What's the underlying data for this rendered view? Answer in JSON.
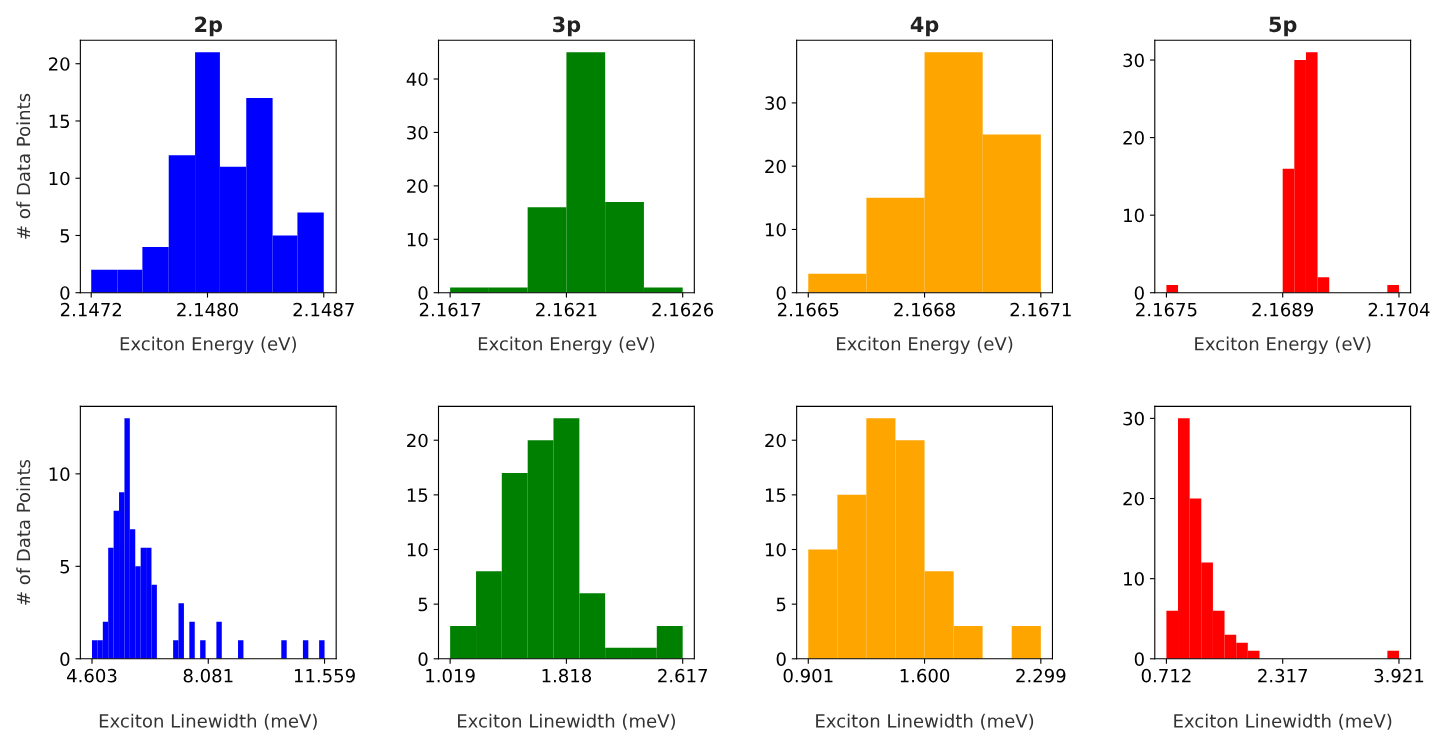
{
  "chart_data": [
    {
      "type": "histogram",
      "title": "2p",
      "xlabel": "Exciton Energy (eV)",
      "ylabel": "# of Data Points",
      "color": "#0000ff",
      "bins": [
        2.1472,
        2.14737,
        2.14753,
        2.1477,
        2.14787,
        2.14803,
        2.1482,
        2.14837,
        2.14853,
        2.1487
      ],
      "values": [
        2,
        2,
        4,
        12,
        21,
        11,
        17,
        5,
        7
      ],
      "xlim": [
        2.14713,
        2.14878
      ],
      "xticks": [
        {
          "value": 2.1472,
          "label": "2.1472"
        },
        {
          "value": 2.14795,
          "label": "2.1480"
        },
        {
          "value": 2.1487,
          "label": "2.1487"
        }
      ],
      "ylim": [
        0,
        22.05
      ],
      "yticks": [
        0,
        5,
        10,
        15,
        20
      ]
    },
    {
      "type": "histogram",
      "title": "3p",
      "xlabel": "Exciton Energy (eV)",
      "color": "#008000",
      "bins": [
        2.1617,
        2.16185,
        2.162,
        2.16215,
        2.1623,
        2.16245,
        2.1626
      ],
      "values": [
        1,
        1,
        16,
        45,
        17,
        1
      ],
      "xlim": [
        2.161655,
        2.162645
      ],
      "xticks": [
        {
          "value": 2.1617,
          "label": "2.1617"
        },
        {
          "value": 2.16215,
          "label": "2.1621"
        },
        {
          "value": 2.1626,
          "label": "2.1626"
        }
      ],
      "ylim": [
        0,
        47.25
      ],
      "yticks": [
        0,
        10,
        20,
        30,
        40
      ]
    },
    {
      "type": "histogram",
      "title": "4p",
      "xlabel": "Exciton Energy (eV)",
      "color": "#ffa500",
      "bins": [
        2.1665,
        2.16665,
        2.1668,
        2.16695,
        2.1671
      ],
      "values": [
        3,
        15,
        38,
        25
      ],
      "xlim": [
        2.16647,
        2.16713
      ],
      "xticks": [
        {
          "value": 2.1665,
          "label": "2.1665"
        },
        {
          "value": 2.1668,
          "label": "2.1668"
        },
        {
          "value": 2.1671,
          "label": "2.1671"
        }
      ],
      "ylim": [
        0,
        39.9
      ],
      "yticks": [
        0,
        10,
        20,
        30
      ]
    },
    {
      "type": "histogram",
      "title": "5p",
      "xlabel": "Exciton Energy (eV)",
      "color": "#ff0000",
      "bins": [
        2.1675,
        2.167645,
        2.16779,
        2.167935,
        2.16808,
        2.168225,
        2.16837,
        2.168515,
        2.16866,
        2.168805,
        2.16895,
        2.169095,
        2.16924,
        2.169385,
        2.16953,
        2.169675,
        2.16982,
        2.169965,
        2.17011,
        2.170255,
        2.1704
      ],
      "values": [
        1,
        0,
        0,
        0,
        0,
        0,
        0,
        0,
        0,
        0,
        16,
        30,
        31,
        2,
        0,
        0,
        0,
        0,
        0,
        1
      ],
      "xlim": [
        2.167355,
        2.170545
      ],
      "xticks": [
        {
          "value": 2.1675,
          "label": "2.1675"
        },
        {
          "value": 2.16895,
          "label": "2.1689"
        },
        {
          "value": 2.1704,
          "label": "2.1704"
        }
      ],
      "ylim": [
        0,
        32.55
      ],
      "yticks": [
        0,
        10,
        20,
        30
      ]
    },
    {
      "type": "histogram",
      "xlabel": "Exciton Linewidth (meV)",
      "ylabel": "# of Data Points",
      "color": "#0000ff",
      "bins": [
        4.603,
        4.765,
        4.927,
        5.088,
        5.25,
        5.412,
        5.574,
        5.735,
        5.897,
        6.059,
        6.221,
        6.382,
        6.544,
        6.706,
        6.868,
        7.03,
        7.191,
        7.353,
        7.515,
        7.677,
        7.838,
        8.0,
        8.162,
        8.324,
        8.485,
        8.647,
        8.809,
        8.971,
        9.133,
        9.294,
        9.456,
        9.618,
        9.78,
        9.941,
        10.103,
        10.265,
        10.427,
        10.588,
        10.75,
        10.912,
        11.074,
        11.235,
        11.397,
        11.559
      ],
      "values": [
        1,
        1,
        2,
        6,
        8,
        9,
        13,
        7,
        5,
        6,
        6,
        4,
        0,
        0,
        0,
        1,
        3,
        0,
        2,
        0,
        1,
        0,
        0,
        2,
        0,
        0,
        0,
        1,
        0,
        0,
        0,
        0,
        0,
        0,
        0,
        1,
        0,
        0,
        0,
        1,
        0,
        0,
        1
      ],
      "xlim": [
        4.2552,
        11.9068
      ],
      "xticks": [
        {
          "value": 4.603,
          "label": "4.603"
        },
        {
          "value": 8.081,
          "label": "8.081"
        },
        {
          "value": 11.559,
          "label": "11.559"
        }
      ],
      "ylim": [
        0,
        13.65
      ],
      "yticks": [
        0,
        5,
        10
      ]
    },
    {
      "type": "histogram",
      "xlabel": "Exciton Linewidth (meV)",
      "color": "#008000",
      "bins": [
        1.019,
        1.197,
        1.374,
        1.552,
        1.729,
        1.907,
        2.084,
        2.262,
        2.439,
        2.617
      ],
      "values": [
        3,
        8,
        17,
        20,
        22,
        6,
        1,
        1,
        3
      ],
      "xlim": [
        0.9391,
        2.6969
      ],
      "xticks": [
        {
          "value": 1.019,
          "label": "1.019"
        },
        {
          "value": 1.818,
          "label": "1.818"
        },
        {
          "value": 2.617,
          "label": "2.617"
        }
      ],
      "ylim": [
        0,
        23.1
      ],
      "yticks": [
        0,
        5,
        10,
        15,
        20
      ]
    },
    {
      "type": "histogram",
      "xlabel": "Exciton Linewidth (meV)",
      "color": "#ffa500",
      "bins": [
        0.901,
        1.076,
        1.25,
        1.425,
        1.6,
        1.775,
        1.949,
        2.124,
        2.299
      ],
      "values": [
        10,
        15,
        22,
        20,
        8,
        3,
        0,
        3
      ],
      "xlim": [
        0.8311,
        2.3689
      ],
      "xticks": [
        {
          "value": 0.901,
          "label": "0.901"
        },
        {
          "value": 1.6,
          "label": "1.600"
        },
        {
          "value": 2.299,
          "label": "2.299"
        }
      ],
      "ylim": [
        0,
        23.1
      ],
      "yticks": [
        0,
        5,
        10,
        15,
        20
      ]
    },
    {
      "type": "histogram",
      "xlabel": "Exciton Linewidth (meV)",
      "color": "#ff0000",
      "bins": [
        0.712,
        0.872,
        1.033,
        1.193,
        1.354,
        1.514,
        1.675,
        1.835,
        1.996,
        2.156,
        2.317,
        2.477,
        2.637,
        2.798,
        2.958,
        3.119,
        3.279,
        3.44,
        3.6,
        3.761,
        3.921
      ],
      "values": [
        6,
        30,
        20,
        12,
        6,
        3,
        2,
        1,
        0,
        0,
        0,
        0,
        0,
        0,
        0,
        0,
        0,
        0,
        0,
        1
      ],
      "xlim": [
        0.5516,
        4.0814
      ],
      "xticks": [
        {
          "value": 0.712,
          "label": "0.712"
        },
        {
          "value": 2.3165,
          "label": "2.317"
        },
        {
          "value": 3.921,
          "label": "3.921"
        }
      ],
      "ylim": [
        0,
        31.5
      ],
      "yticks": [
        0,
        10,
        20,
        30
      ]
    }
  ]
}
